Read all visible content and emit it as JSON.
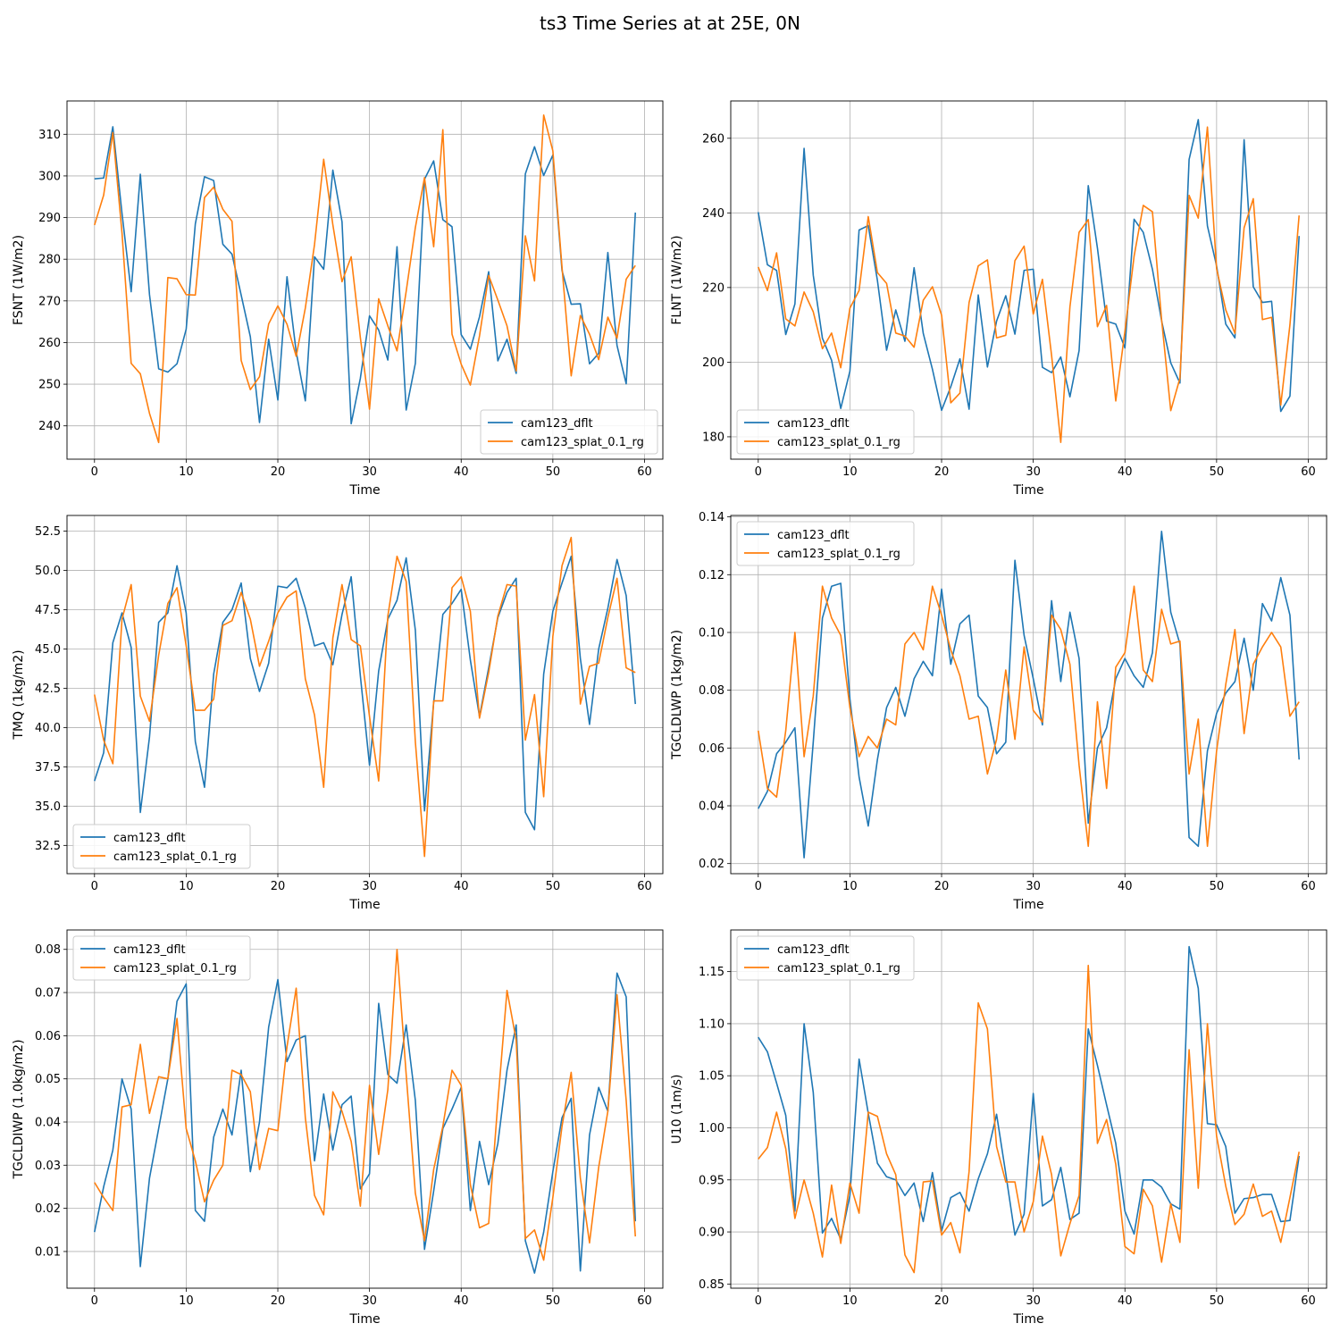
{
  "figure": {
    "title": "ts3 Time Series at at 25E, 0N",
    "colors": {
      "series_1": "#1f77b4",
      "series_2": "#ff7f0e",
      "grid": "#b0b0b0"
    }
  },
  "chart_data": [
    {
      "type": "line",
      "title": "",
      "xlabel": "Time",
      "ylabel": "FSNT (1W/m2)",
      "xlim": [
        -3,
        62
      ],
      "ylim": [
        232,
        318
      ],
      "xticks": [
        0,
        10,
        20,
        30,
        40,
        50,
        60
      ],
      "yticks": [
        240,
        250,
        260,
        270,
        280,
        290,
        300,
        310
      ],
      "grid": true,
      "legend_position": "lower-right",
      "series": [
        {
          "name": "cam123_dflt",
          "values": [
            299.3,
            299.5,
            311.8,
            291.0,
            272.2,
            300.4,
            271.5,
            253.7,
            252.9,
            254.9,
            263.2,
            288.5,
            299.8,
            298.9,
            283.6,
            281.2,
            271.4,
            261.4,
            240.8,
            260.8,
            246.2,
            275.8,
            257.8,
            246.0,
            280.6,
            277.6,
            301.4,
            289.0,
            240.5,
            251.4,
            266.4,
            263.0,
            255.8,
            283.0,
            243.8,
            255.0,
            299.2,
            303.6,
            289.5,
            287.8,
            261.9,
            258.4,
            266.2,
            277.0,
            255.6,
            260.8,
            252.6,
            300.5,
            307.0,
            300.1,
            305.0,
            277.3,
            269.2,
            269.3,
            254.9,
            257.4,
            281.6,
            259.3,
            250.1,
            291.2
          ]
        },
        {
          "name": "cam123_splat_0.1_rg",
          "values": [
            288.2,
            295.4,
            310.4,
            286.3,
            255.0,
            252.5,
            243.0,
            236.0,
            275.6,
            275.3,
            271.5,
            271.4,
            294.8,
            297.3,
            292.0,
            289.1,
            255.7,
            248.7,
            251.8,
            264.5,
            268.8,
            264.4,
            256.7,
            268.3,
            283.5,
            304.0,
            288.3,
            274.6,
            280.6,
            261.2,
            244.0,
            270.5,
            264.0,
            258.0,
            272.3,
            287.6,
            299.6,
            283.0,
            311.1,
            262.0,
            254.8,
            249.8,
            261.6,
            276.1,
            270.2,
            264.0,
            253.2,
            285.6,
            274.8,
            314.6,
            306.0,
            278.1,
            252.0,
            266.5,
            262.0,
            255.9,
            266.1,
            261.0,
            275.2,
            278.5
          ]
        }
      ]
    },
    {
      "type": "line",
      "title": "",
      "xlabel": "Time",
      "ylabel": "FLNT (1W/m2)",
      "xlim": [
        -3,
        62
      ],
      "ylim": [
        174,
        270
      ],
      "xticks": [
        0,
        10,
        20,
        30,
        40,
        50,
        60
      ],
      "yticks": [
        180,
        200,
        220,
        240,
        260
      ],
      "grid": true,
      "legend_position": "lower-left",
      "series": [
        {
          "name": "cam123_dflt",
          "values": [
            240.2,
            226.1,
            224.6,
            207.4,
            215.6,
            257.3,
            223.3,
            206.4,
            200.5,
            187.6,
            197.6,
            235.4,
            236.6,
            221.9,
            203.2,
            214.0,
            205.6,
            225.3,
            207.7,
            198.1,
            187.1,
            193.4,
            200.9,
            187.4,
            218.0,
            198.7,
            211.0,
            217.8,
            207.5,
            224.6,
            224.9,
            198.6,
            197.2,
            201.4,
            190.7,
            203.1,
            247.3,
            230.6,
            211.0,
            210.2,
            203.8,
            238.3,
            234.8,
            224.9,
            211.1,
            199.8,
            194.4,
            254.3,
            265.0,
            236.5,
            225.8,
            210.2,
            206.5,
            259.6,
            220.2,
            216.0,
            216.3,
            186.8,
            190.9,
            233.8
          ]
        },
        {
          "name": "cam123_splat_0.1_rg",
          "values": [
            225.5,
            219.2,
            229.3,
            211.6,
            209.7,
            218.8,
            213.5,
            203.6,
            207.8,
            198.5,
            214.5,
            219.2,
            239.0,
            224.0,
            221.1,
            207.8,
            207.0,
            204.0,
            216.6,
            220.2,
            212.6,
            189.1,
            191.7,
            216.0,
            225.8,
            227.4,
            206.5,
            207.2,
            227.2,
            231.1,
            212.9,
            222.2,
            201.8,
            178.5,
            214.8,
            234.8,
            238.2,
            209.5,
            215.2,
            189.6,
            208.3,
            228.4,
            242.0,
            240.3,
            211.4,
            187.0,
            195.7,
            244.7,
            238.6,
            263.0,
            225.0,
            214.0,
            207.7,
            236.0,
            243.8,
            211.4,
            212.0,
            188.5,
            210.0,
            239.3
          ]
        }
      ]
    },
    {
      "type": "line",
      "title": "",
      "xlabel": "Time",
      "ylabel": "TMQ (1kg/m2)",
      "xlim": [
        -3,
        62
      ],
      "ylim": [
        30.7,
        53.5
      ],
      "xticks": [
        0,
        10,
        20,
        30,
        40,
        50,
        60
      ],
      "yticks": [
        32.5,
        35.0,
        37.5,
        40.0,
        42.5,
        45.0,
        47.5,
        50.0,
        52.5
      ],
      "ytick_labels": [
        "32.5",
        "35.0",
        "37.5",
        "40.0",
        "42.5",
        "45.0",
        "47.5",
        "50.0",
        "52.5"
      ],
      "grid": true,
      "legend_position": "lower-left",
      "series": [
        {
          "name": "cam123_dflt",
          "values": [
            36.6,
            38.4,
            45.4,
            47.3,
            45.1,
            34.6,
            39.4,
            46.7,
            47.3,
            50.3,
            47.3,
            39.1,
            36.2,
            43.4,
            46.7,
            47.5,
            49.2,
            44.4,
            42.3,
            44.1,
            49.0,
            48.9,
            49.5,
            47.6,
            45.2,
            45.4,
            44.0,
            47.2,
            49.6,
            43.3,
            37.6,
            43.6,
            46.9,
            48.1,
            50.8,
            46.2,
            34.7,
            41.6,
            47.2,
            47.9,
            48.8,
            44.3,
            40.7,
            43.8,
            47.0,
            48.6,
            49.5,
            34.6,
            33.5,
            43.4,
            47.4,
            49.2,
            50.9,
            44.4,
            40.2,
            45.0,
            47.6,
            50.7,
            48.4,
            41.5
          ]
        },
        {
          "name": "cam123_splat_0.1_rg",
          "values": [
            42.1,
            39.2,
            37.7,
            46.9,
            49.1,
            42.0,
            40.4,
            44.6,
            47.9,
            48.9,
            45.2,
            41.1,
            41.1,
            41.8,
            46.5,
            46.8,
            48.6,
            46.9,
            43.9,
            45.5,
            47.3,
            48.3,
            48.7,
            43.1,
            40.8,
            36.2,
            45.7,
            49.1,
            45.6,
            45.2,
            40.7,
            36.6,
            47.1,
            50.9,
            49.3,
            39.1,
            31.8,
            41.7,
            41.7,
            48.9,
            49.6,
            47.4,
            40.6,
            43.5,
            47.1,
            49.1,
            49.0,
            39.2,
            42.1,
            35.6,
            45.8,
            50.3,
            52.1,
            41.5,
            43.9,
            44.1,
            47.0,
            49.5,
            43.8,
            43.5
          ]
        }
      ]
    },
    {
      "type": "line",
      "title": "",
      "xlabel": "Time",
      "ylabel": "TGCLDLWP (1kg/m2)",
      "xlim": [
        -3,
        62
      ],
      "ylim": [
        0.0165,
        0.1405
      ],
      "xticks": [
        0,
        10,
        20,
        30,
        40,
        50,
        60
      ],
      "yticks": [
        0.02,
        0.04,
        0.06,
        0.08,
        0.1,
        0.12,
        0.14
      ],
      "ytick_labels": [
        "0.02",
        "0.04",
        "0.06",
        "0.08",
        "0.10",
        "0.12",
        "0.14"
      ],
      "grid": true,
      "legend_position": "top-left",
      "series": [
        {
          "name": "cam123_dflt",
          "values": [
            0.039,
            0.045,
            0.058,
            0.062,
            0.067,
            0.022,
            0.062,
            0.105,
            0.116,
            0.117,
            0.077,
            0.05,
            0.033,
            0.056,
            0.074,
            0.081,
            0.071,
            0.084,
            0.09,
            0.085,
            0.115,
            0.089,
            0.103,
            0.106,
            0.078,
            0.074,
            0.058,
            0.062,
            0.125,
            0.099,
            0.084,
            0.068,
            0.111,
            0.083,
            0.107,
            0.091,
            0.034,
            0.06,
            0.067,
            0.084,
            0.091,
            0.085,
            0.081,
            0.093,
            0.135,
            0.107,
            0.096,
            0.029,
            0.026,
            0.059,
            0.072,
            0.079,
            0.083,
            0.098,
            0.08,
            0.11,
            0.104,
            0.119,
            0.106,
            0.056
          ]
        },
        {
          "name": "cam123_splat_0.1_rg",
          "values": [
            0.066,
            0.046,
            0.043,
            0.066,
            0.1,
            0.057,
            0.078,
            0.116,
            0.105,
            0.099,
            0.074,
            0.057,
            0.064,
            0.06,
            0.07,
            0.068,
            0.096,
            0.1,
            0.094,
            0.116,
            0.106,
            0.094,
            0.085,
            0.07,
            0.071,
            0.051,
            0.063,
            0.087,
            0.063,
            0.095,
            0.073,
            0.069,
            0.106,
            0.101,
            0.089,
            0.054,
            0.026,
            0.076,
            0.046,
            0.088,
            0.093,
            0.116,
            0.087,
            0.083,
            0.108,
            0.096,
            0.097,
            0.051,
            0.07,
            0.026,
            0.059,
            0.082,
            0.101,
            0.065,
            0.089,
            0.095,
            0.1,
            0.095,
            0.071,
            0.076
          ]
        }
      ]
    },
    {
      "type": "line",
      "title": "",
      "xlabel": "Time",
      "ylabel": "TGCLDIWP (1.0kg/m2)",
      "xlim": [
        -3,
        62
      ],
      "ylim": [
        0.0015,
        0.0845
      ],
      "xticks": [
        0,
        10,
        20,
        30,
        40,
        50,
        60
      ],
      "yticks": [
        0.01,
        0.02,
        0.03,
        0.04,
        0.05,
        0.06,
        0.07,
        0.08
      ],
      "ytick_labels": [
        "0.01",
        "0.02",
        "0.03",
        "0.04",
        "0.05",
        "0.06",
        "0.07",
        "0.08"
      ],
      "grid": true,
      "legend_position": "top-left",
      "series": [
        {
          "name": "cam123_dflt",
          "values": [
            0.0145,
            0.025,
            0.0335,
            0.05,
            0.043,
            0.0065,
            0.027,
            0.0385,
            0.05,
            0.068,
            0.072,
            0.0195,
            0.017,
            0.0365,
            0.043,
            0.037,
            0.052,
            0.0285,
            0.04,
            0.062,
            0.073,
            0.054,
            0.059,
            0.06,
            0.031,
            0.0465,
            0.0335,
            0.044,
            0.046,
            0.0245,
            0.028,
            0.0675,
            0.051,
            0.049,
            0.0625,
            0.045,
            0.0105,
            0.024,
            0.0385,
            0.043,
            0.048,
            0.0195,
            0.0355,
            0.0255,
            0.035,
            0.052,
            0.0625,
            0.0125,
            0.005,
            0.0145,
            0.0285,
            0.041,
            0.0455,
            0.0055,
            0.037,
            0.048,
            0.0425,
            0.0745,
            0.069,
            0.017
          ]
        },
        {
          "name": "cam123_splat_0.1_rg",
          "values": [
            0.026,
            0.0225,
            0.0195,
            0.0435,
            0.044,
            0.058,
            0.042,
            0.0505,
            0.05,
            0.064,
            0.0385,
            0.031,
            0.0215,
            0.0265,
            0.03,
            0.052,
            0.051,
            0.047,
            0.029,
            0.0385,
            0.038,
            0.0575,
            0.071,
            0.041,
            0.023,
            0.0185,
            0.047,
            0.0425,
            0.0355,
            0.0205,
            0.0485,
            0.0325,
            0.0475,
            0.08,
            0.051,
            0.0235,
            0.0125,
            0.029,
            0.039,
            0.052,
            0.0485,
            0.0255,
            0.0155,
            0.0165,
            0.0445,
            0.0705,
            0.059,
            0.013,
            0.015,
            0.008,
            0.0225,
            0.039,
            0.0515,
            0.027,
            0.012,
            0.0295,
            0.0425,
            0.0695,
            0.045,
            0.0135
          ]
        }
      ]
    },
    {
      "type": "line",
      "title": "",
      "xlabel": "Time",
      "ylabel": "U10 (1m/s)",
      "xlim": [
        -3,
        62
      ],
      "ylim": [
        0.846,
        1.19
      ],
      "xticks": [
        0,
        10,
        20,
        30,
        40,
        50,
        60
      ],
      "yticks": [
        0.85,
        0.9,
        0.95,
        1.0,
        1.05,
        1.1,
        1.15
      ],
      "ytick_labels": [
        "0.85",
        "0.90",
        "0.95",
        "1.00",
        "1.05",
        "1.10",
        "1.15"
      ],
      "grid": true,
      "legend_position": "top-left",
      "series": [
        {
          "name": "cam123_dflt",
          "values": [
            1.087,
            1.073,
            1.043,
            1.012,
            0.92,
            1.1,
            1.034,
            0.899,
            0.913,
            0.893,
            0.935,
            1.066,
            1.014,
            0.966,
            0.953,
            0.95,
            0.935,
            0.947,
            0.91,
            0.957,
            0.901,
            0.933,
            0.938,
            0.92,
            0.951,
            0.975,
            1.013,
            0.956,
            0.897,
            0.917,
            1.033,
            0.925,
            0.931,
            0.962,
            0.912,
            0.918,
            1.095,
            1.06,
            1.022,
            0.985,
            0.92,
            0.898,
            0.95,
            0.95,
            0.943,
            0.927,
            0.922,
            1.174,
            1.134,
            1.004,
            1.003,
            0.982,
            0.918,
            0.932,
            0.933,
            0.936,
            0.936,
            0.91,
            0.911,
            0.973
          ]
        },
        {
          "name": "cam123_splat_0.1_rg",
          "values": [
            0.97,
            0.981,
            1.015,
            0.98,
            0.913,
            0.95,
            0.918,
            0.876,
            0.945,
            0.889,
            0.947,
            0.918,
            1.015,
            1.011,
            0.975,
            0.955,
            0.878,
            0.861,
            0.948,
            0.949,
            0.897,
            0.909,
            0.88,
            0.958,
            1.12,
            1.095,
            0.982,
            0.948,
            0.948,
            0.9,
            0.929,
            0.992,
            0.955,
            0.877,
            0.908,
            0.935,
            1.156,
            0.985,
            1.008,
            0.965,
            0.886,
            0.879,
            0.941,
            0.925,
            0.871,
            0.927,
            0.89,
            1.075,
            0.942,
            1.1,
            0.992,
            0.944,
            0.907,
            0.917,
            0.946,
            0.915,
            0.92,
            0.89,
            0.933,
            0.977
          ]
        }
      ]
    }
  ]
}
